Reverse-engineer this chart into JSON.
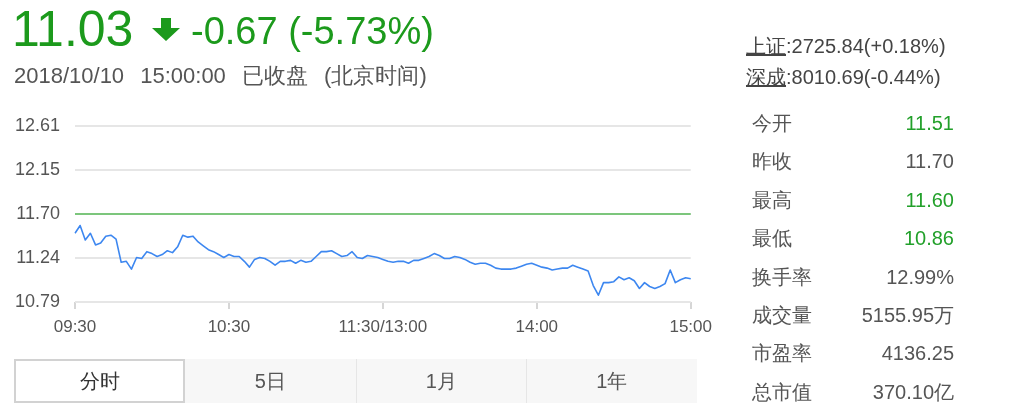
{
  "chart_data": {
    "type": "line",
    "title": "11.03",
    "subtitle": "2018/10/10 15:00:00 已收盘 (北京时间)",
    "annotations": [
      "-0.67 (-5.73%)",
      "上证",
      ":2725.84(+0.18%)",
      "深成",
      ":8010.69(-0.44%)",
      "今开",
      "11.51",
      "昨收",
      "11.70",
      "最高",
      "11.60",
      "最低",
      "10.86",
      "换手率",
      "12.99%",
      "成交量",
      "5155.95万",
      "市盈率",
      "4136.25",
      "总市值",
      "370.10亿",
      "分时",
      "5日",
      "1月",
      "1年"
    ],
    "categories": [
      "09:30",
      null,
      null,
      null,
      null,
      null,
      null,
      null,
      null,
      null,
      null,
      null,
      null,
      null,
      null,
      null,
      null,
      null,
      null,
      null,
      null,
      null,
      null,
      null,
      null,
      null,
      null,
      null,
      null,
      null,
      "10:30",
      null,
      null,
      null,
      null,
      null,
      null,
      null,
      null,
      null,
      null,
      null,
      null,
      null,
      null,
      null,
      null,
      null,
      null,
      null,
      null,
      null,
      null,
      null,
      null,
      null,
      null,
      null,
      null,
      null,
      "11:30/13:00",
      null,
      null,
      null,
      null,
      null,
      null,
      null,
      null,
      null,
      null,
      null,
      null,
      null,
      null,
      null,
      null,
      null,
      null,
      null,
      null,
      null,
      null,
      null,
      null,
      null,
      null,
      null,
      null,
      null,
      "14:00",
      null,
      null,
      null,
      null,
      null,
      null,
      null,
      null,
      null,
      null,
      null,
      null,
      null,
      null,
      null,
      null,
      null,
      null,
      null,
      null,
      null,
      null,
      null,
      null,
      null,
      null,
      null,
      null,
      null,
      "15:00"
    ],
    "values": [
      11.5,
      11.58,
      11.43,
      11.5,
      11.38,
      11.4,
      11.47,
      11.48,
      11.44,
      11.2,
      11.21,
      11.13,
      11.25,
      11.24,
      11.31,
      11.29,
      11.26,
      11.28,
      11.32,
      11.3,
      11.36,
      11.48,
      11.46,
      11.47,
      11.41,
      11.37,
      11.33,
      11.31,
      11.28,
      11.25,
      11.28,
      11.26,
      11.26,
      11.21,
      11.15,
      11.23,
      11.25,
      11.24,
      11.21,
      11.17,
      11.21,
      11.21,
      11.22,
      11.19,
      11.22,
      11.2,
      11.21,
      11.26,
      11.31,
      11.31,
      11.32,
      11.29,
      11.26,
      11.27,
      11.31,
      11.25,
      11.24,
      11.27,
      11.26,
      11.25,
      11.23,
      11.21,
      11.2,
      11.21,
      11.21,
      11.19,
      11.22,
      11.22,
      11.24,
      11.26,
      11.29,
      11.27,
      11.24,
      11.24,
      11.26,
      11.25,
      11.23,
      11.2,
      11.18,
      11.19,
      11.19,
      11.17,
      11.14,
      11.13,
      11.13,
      11.13,
      11.14,
      11.16,
      11.18,
      11.19,
      11.17,
      11.15,
      11.14,
      11.12,
      11.13,
      11.14,
      11.14,
      11.17,
      11.15,
      11.13,
      11.11,
      10.96,
      10.86,
      10.99,
      10.99,
      11.0,
      11.05,
      11.02,
      11.04,
      11.01,
      10.93,
      10.99,
      10.95,
      10.93,
      10.95,
      10.98,
      11.12,
      10.99,
      11.02,
      11.04,
      11.03
    ],
    "color": "#3d87f0",
    "ylim": [
      10.79,
      12.61
    ],
    "yticks": [
      10.79,
      11.24,
      {
        "value": 11.7,
        "label": "11.70"
      },
      12.15,
      12.61
    ],
    "grid": "y",
    "ref_lines": [
      {
        "axis": "y",
        "value": 11.7,
        "color": "#7cc67c"
      }
    ]
  }
}
